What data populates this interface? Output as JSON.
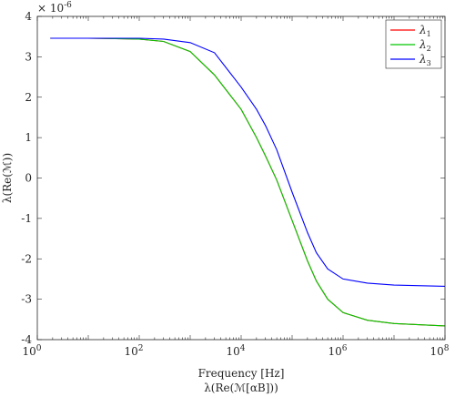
{
  "chart_data": {
    "type": "line",
    "title": "λ(Re(ℳ[αB]))",
    "xlabel": "Frequency [Hz]",
    "ylabel": "λ(Re(ℳ))",
    "x_scale": "log",
    "xlim": [
      1,
      100000000
    ],
    "ylim": [
      -4,
      4
    ],
    "y_exponent_label": "× 10",
    "y_exponent": "-6",
    "x_ticks": [
      {
        "value": 1,
        "base": "10",
        "exp": "0"
      },
      {
        "value": 100,
        "base": "10",
        "exp": "2"
      },
      {
        "value": 10000,
        "base": "10",
        "exp": "4"
      },
      {
        "value": 1000000,
        "base": "10",
        "exp": "6"
      },
      {
        "value": 100000000,
        "base": "10",
        "exp": "8"
      }
    ],
    "y_ticks": [
      "-4",
      "-3",
      "-2",
      "-1",
      "0",
      "1",
      "2",
      "3",
      "4"
    ],
    "legend_position": "top-right",
    "grid": false,
    "x": [
      1.8,
      10,
      100,
      300,
      1000,
      3000,
      10000,
      20000,
      30000,
      50000,
      100000,
      200000,
      300000,
      500000,
      1000000,
      3000000,
      10000000,
      100000000
    ],
    "series": [
      {
        "name": "λ1",
        "base": "λ",
        "sub": "1",
        "color": "#ff0000",
        "values": [
          3.46,
          3.46,
          3.44,
          3.38,
          3.13,
          2.55,
          1.7,
          1.0,
          0.55,
          -0.05,
          -1.05,
          -2.05,
          -2.55,
          -3.0,
          -3.33,
          -3.52,
          -3.6,
          -3.66
        ]
      },
      {
        "name": "λ2",
        "base": "λ",
        "sub": "2",
        "color": "#00c800",
        "values": [
          3.46,
          3.46,
          3.44,
          3.38,
          3.13,
          2.55,
          1.7,
          1.0,
          0.55,
          -0.05,
          -1.05,
          -2.05,
          -2.55,
          -3.0,
          -3.33,
          -3.52,
          -3.6,
          -3.66
        ]
      },
      {
        "name": "λ3",
        "base": "λ",
        "sub": "3",
        "color": "#0000ff",
        "values": [
          3.46,
          3.46,
          3.46,
          3.44,
          3.35,
          3.1,
          2.25,
          1.7,
          1.3,
          0.7,
          -0.35,
          -1.35,
          -1.85,
          -2.25,
          -2.5,
          -2.6,
          -2.65,
          -2.68
        ]
      }
    ]
  }
}
